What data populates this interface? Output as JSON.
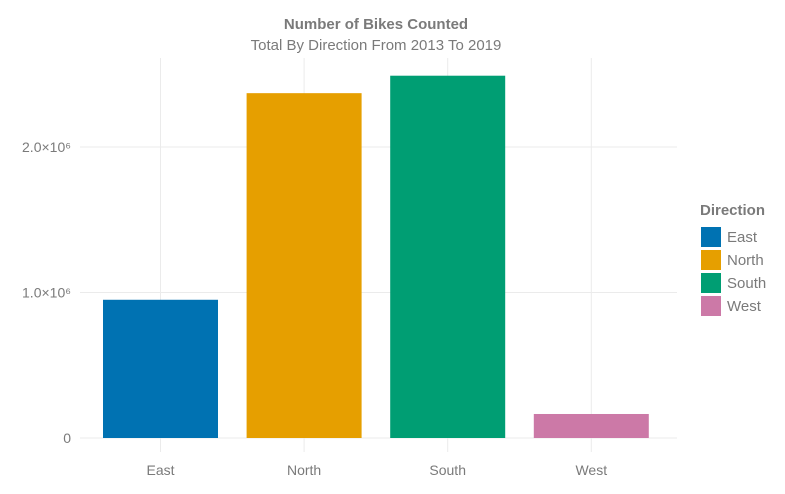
{
  "chart_data": {
    "type": "bar",
    "title": "Number of Bikes Counted",
    "subtitle": "Total By Direction From 2013 To 2019",
    "xlabel": "",
    "ylabel": "",
    "categories": [
      "East",
      "North",
      "South",
      "West"
    ],
    "values": [
      950000,
      2370000,
      2490000,
      165000
    ],
    "colors": [
      "#0072b2",
      "#e69f00",
      "#009e73",
      "#cc79a7"
    ],
    "ylim": [
      0,
      2600000
    ],
    "y_ticks": [
      {
        "value": 0,
        "label": "0"
      },
      {
        "value": 1000000,
        "label": "1.0×10⁶"
      },
      {
        "value": 2000000,
        "label": "2.0×10⁶"
      }
    ],
    "grid": true,
    "legend": {
      "title": "Direction",
      "position": "right",
      "entries": [
        "East",
        "North",
        "South",
        "West"
      ]
    }
  }
}
